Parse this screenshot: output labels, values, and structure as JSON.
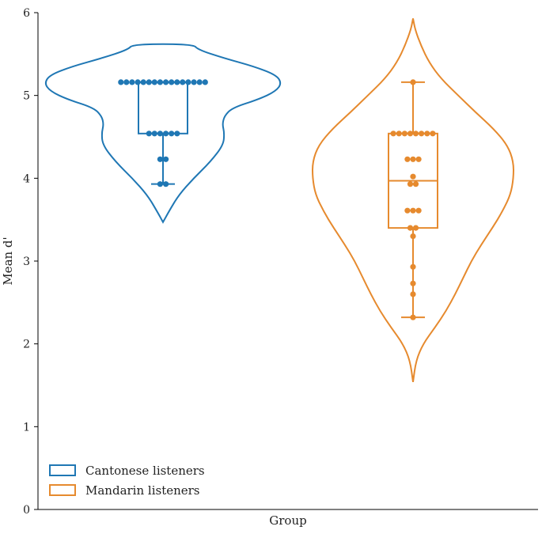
{
  "chart_data": {
    "type": "violin",
    "title": "",
    "xlabel": "Group",
    "ylabel": "Mean d'",
    "ylim": [
      0,
      6
    ],
    "yticks": [
      "0",
      "1",
      "2",
      "3",
      "4",
      "5",
      "6"
    ],
    "grid": false,
    "legend_position": "lower-left",
    "series": [
      {
        "name": "Cantonese listeners",
        "color": "#1f77b4",
        "box": {
          "q1": 4.54,
          "median": 5.16,
          "q3": 5.16,
          "whisker_low": 3.93,
          "whisker_high": 5.16
        },
        "violin": {
          "min": 3.47,
          "max": 5.62,
          "profile": [
            [
              3.47,
              0.0
            ],
            [
              3.6,
              0.06
            ],
            [
              3.8,
              0.16
            ],
            [
              4.0,
              0.31
            ],
            [
              4.2,
              0.48
            ],
            [
              4.4,
              0.61
            ],
            [
              4.55,
              0.62
            ],
            [
              4.65,
              0.6
            ],
            [
              4.75,
              0.62
            ],
            [
              4.85,
              0.7
            ],
            [
              4.95,
              0.96
            ],
            [
              5.05,
              1.14
            ],
            [
              5.15,
              1.2
            ],
            [
              5.25,
              1.14
            ],
            [
              5.35,
              0.92
            ],
            [
              5.45,
              0.62
            ],
            [
              5.55,
              0.36
            ],
            [
              5.62,
              0.3
            ]
          ]
        },
        "points": [
          {
            "y": 5.16,
            "count": 16
          },
          {
            "y": 4.54,
            "count": 6
          },
          {
            "y": 4.23,
            "count": 2
          },
          {
            "y": 3.93,
            "count": 2
          }
        ]
      },
      {
        "name": "Mandarin listeners",
        "color": "#e68a2e",
        "box": {
          "q1": 3.4,
          "median": 3.97,
          "q3": 4.54,
          "whisker_low": 2.32,
          "whisker_high": 5.16
        },
        "violin": {
          "min": 1.54,
          "max": 5.93,
          "profile": [
            [
              1.54,
              0.0
            ],
            [
              1.8,
              0.03
            ],
            [
              2.0,
              0.1
            ],
            [
              2.2,
              0.22
            ],
            [
              2.4,
              0.33
            ],
            [
              2.6,
              0.42
            ],
            [
              2.8,
              0.5
            ],
            [
              3.0,
              0.58
            ],
            [
              3.2,
              0.68
            ],
            [
              3.4,
              0.79
            ],
            [
              3.6,
              0.89
            ],
            [
              3.8,
              0.97
            ],
            [
              4.0,
              1.0
            ],
            [
              4.2,
              1.0
            ],
            [
              4.4,
              0.94
            ],
            [
              4.6,
              0.8
            ],
            [
              4.8,
              0.62
            ],
            [
              5.0,
              0.45
            ],
            [
              5.2,
              0.28
            ],
            [
              5.4,
              0.16
            ],
            [
              5.6,
              0.08
            ],
            [
              5.8,
              0.02
            ],
            [
              5.93,
              0.0
            ]
          ]
        },
        "points": [
          {
            "y": 5.16,
            "count": 1
          },
          {
            "y": 4.54,
            "count": 8
          },
          {
            "y": 4.23,
            "count": 3
          },
          {
            "y": 4.02,
            "count": 1
          },
          {
            "y": 3.93,
            "count": 2
          },
          {
            "y": 3.61,
            "count": 3
          },
          {
            "y": 3.4,
            "count": 2
          },
          {
            "y": 3.3,
            "count": 1
          },
          {
            "y": 2.93,
            "count": 1
          },
          {
            "y": 2.73,
            "count": 1
          },
          {
            "y": 2.6,
            "count": 1
          },
          {
            "y": 2.32,
            "count": 1
          }
        ]
      }
    ]
  }
}
